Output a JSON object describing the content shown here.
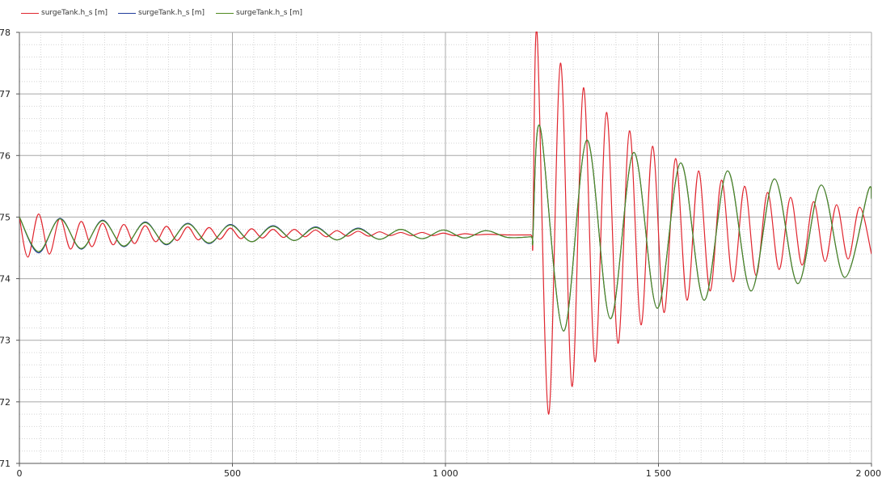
{
  "legend": {
    "items": [
      {
        "label": "surgeTank.h_s [m]",
        "color": "#e0262f"
      },
      {
        "label": "surgeTank.h_s [m]",
        "color": "#1f3c9c"
      },
      {
        "label": "surgeTank.h_s [m]",
        "color": "#4f8a1f"
      }
    ]
  },
  "chart_data": {
    "type": "line",
    "xlim": [
      0,
      2000
    ],
    "ylim": [
      71,
      78
    ],
    "x_ticks": [
      {
        "value": 0,
        "label": "0"
      },
      {
        "value": 500,
        "label": "500"
      },
      {
        "value": 1000,
        "label": "1 000"
      },
      {
        "value": 1500,
        "label": "1 500"
      },
      {
        "value": 2000,
        "label": "2 000"
      }
    ],
    "y_ticks": [
      {
        "value": 71,
        "label": "71"
      },
      {
        "value": 72,
        "label": "72"
      },
      {
        "value": 73,
        "label": "73"
      },
      {
        "value": 74,
        "label": "74"
      },
      {
        "value": 75,
        "label": "75"
      },
      {
        "value": 76,
        "label": "76"
      },
      {
        "value": 77,
        "label": "77"
      },
      {
        "value": 78,
        "label": "78"
      }
    ],
    "grid": true,
    "legend_position": "top-left",
    "series": [
      {
        "name": "surgeTank.h_s [m]",
        "color": "#e0262f",
        "x": [
          0,
          20,
          45,
          70,
          95,
          120,
          145,
          170,
          195,
          220,
          245,
          270,
          295,
          320,
          345,
          370,
          395,
          420,
          445,
          470,
          495,
          520,
          545,
          570,
          595,
          620,
          645,
          670,
          695,
          720,
          745,
          770,
          795,
          820,
          845,
          870,
          895,
          920,
          945,
          970,
          995,
          1020,
          1045,
          1070,
          1100,
          1150,
          1200,
          1205,
          1215,
          1242,
          1270,
          1297,
          1324,
          1351,
          1378,
          1405,
          1432,
          1459,
          1486,
          1513,
          1540,
          1567,
          1594,
          1621,
          1648,
          1675,
          1702,
          1729,
          1756,
          1783,
          1810,
          1837,
          1864,
          1891,
          1918,
          1945,
          1972,
          2000
        ],
        "y": [
          75.0,
          74.35,
          75.05,
          74.4,
          74.98,
          74.48,
          74.93,
          74.52,
          74.9,
          74.55,
          74.88,
          74.57,
          74.86,
          74.6,
          74.85,
          74.62,
          74.84,
          74.63,
          74.83,
          74.64,
          74.82,
          74.65,
          74.81,
          74.66,
          74.8,
          74.67,
          74.8,
          74.68,
          74.79,
          74.68,
          74.78,
          74.69,
          74.77,
          74.69,
          74.76,
          74.7,
          74.75,
          74.7,
          74.75,
          74.7,
          74.74,
          74.7,
          74.73,
          74.71,
          74.72,
          74.71,
          74.71,
          74.7,
          78.0,
          71.8,
          77.5,
          72.25,
          77.1,
          72.65,
          76.7,
          72.95,
          76.4,
          73.25,
          76.15,
          73.45,
          75.95,
          73.65,
          75.75,
          73.8,
          75.6,
          73.95,
          75.5,
          74.05,
          75.4,
          74.15,
          75.32,
          74.22,
          75.25,
          74.28,
          75.2,
          74.32,
          75.16,
          74.4
        ]
      },
      {
        "name": "surgeTank.h_s [m]",
        "color": "#1f3c9c",
        "x": [
          0,
          45,
          95,
          145,
          195,
          245,
          295,
          345,
          395,
          445,
          495,
          545,
          595,
          645,
          695,
          745,
          795,
          845,
          895,
          945,
          995,
          1045,
          1095,
          1145,
          1200,
          1205,
          1222,
          1277,
          1332,
          1387,
          1442,
          1497,
          1552,
          1607,
          1662,
          1717,
          1772,
          1827,
          1882,
          1937,
          1992,
          2000
        ],
        "y": [
          75.0,
          74.42,
          74.98,
          74.48,
          74.95,
          74.52,
          74.92,
          74.55,
          74.9,
          74.57,
          74.88,
          74.6,
          74.86,
          74.62,
          74.84,
          74.63,
          74.82,
          74.64,
          74.8,
          74.65,
          74.79,
          74.66,
          74.78,
          74.67,
          74.68,
          74.68,
          76.47,
          73.15,
          76.25,
          73.35,
          76.05,
          73.52,
          75.88,
          73.65,
          75.75,
          73.8,
          75.62,
          73.92,
          75.52,
          74.02,
          75.42,
          75.3
        ]
      },
      {
        "name": "surgeTank.h_s [m]",
        "color": "#4f8a1f",
        "x": [
          0,
          45,
          95,
          145,
          195,
          245,
          295,
          345,
          395,
          445,
          495,
          545,
          595,
          645,
          695,
          745,
          795,
          845,
          895,
          945,
          995,
          1045,
          1095,
          1145,
          1200,
          1205,
          1222,
          1277,
          1332,
          1387,
          1442,
          1497,
          1552,
          1607,
          1662,
          1717,
          1772,
          1827,
          1882,
          1937,
          1992,
          2000
        ],
        "y": [
          75.0,
          74.44,
          74.97,
          74.49,
          74.94,
          74.53,
          74.91,
          74.56,
          74.89,
          74.58,
          74.87,
          74.6,
          74.85,
          74.62,
          74.83,
          74.63,
          74.81,
          74.64,
          74.8,
          74.65,
          74.79,
          74.66,
          74.78,
          74.67,
          74.68,
          74.68,
          76.47,
          73.15,
          76.25,
          73.35,
          76.05,
          73.52,
          75.88,
          73.65,
          75.75,
          73.8,
          75.62,
          73.92,
          75.52,
          74.02,
          75.42,
          75.3
        ]
      }
    ]
  }
}
